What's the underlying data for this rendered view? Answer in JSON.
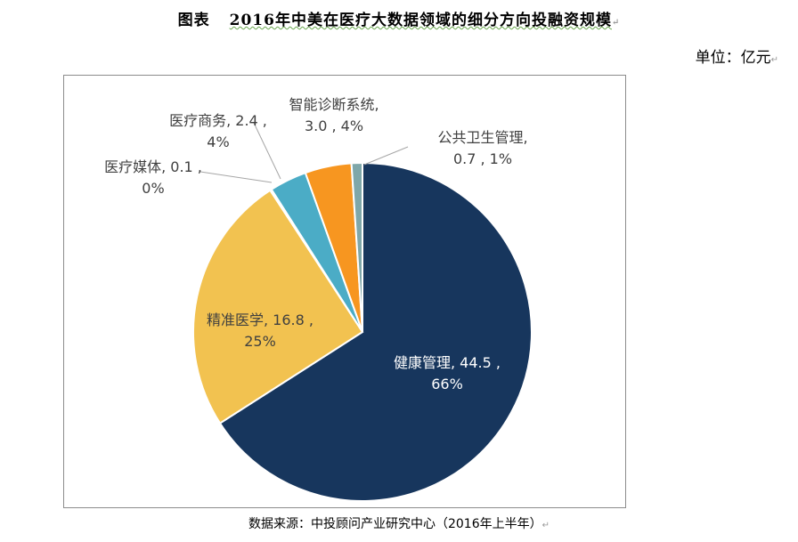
{
  "header": {
    "figure_label": "图表",
    "title": "2016年中美在医疗大数据领域的细分方向投融资规模",
    "unit": "单位：亿元"
  },
  "footer": {
    "source": "数据来源：中投顾问产业研究中心（2016年上半年）"
  },
  "chart_data": {
    "type": "pie",
    "categories": [
      "健康管理",
      "精准医学",
      "医疗媒体",
      "医疗商务",
      "智能诊断系统",
      "公共卫生管理"
    ],
    "values": [
      44.5,
      16.8,
      0.1,
      2.4,
      3.0,
      0.7
    ],
    "percentages": [
      "66%",
      "25%",
      "0%",
      "4%",
      "4%",
      "1%"
    ],
    "colors": [
      "#17365d",
      "#f2c250",
      "#4bacc6",
      "#4bacc6",
      "#f79620",
      "#7fa7a9"
    ],
    "data_labels": [
      [
        "健康管理, 44.5 ,",
        "66%"
      ],
      [
        "精准医学, 16.8 ,",
        "25%"
      ],
      [
        "医疗媒体, 0.1 ,",
        "0%"
      ],
      [
        "医疗商务, 2.4 ,",
        "4%"
      ],
      [
        "智能诊断系统,",
        "3.0 , 4%"
      ],
      [
        "公共卫生管理,",
        "0.7 , 1%"
      ]
    ]
  }
}
